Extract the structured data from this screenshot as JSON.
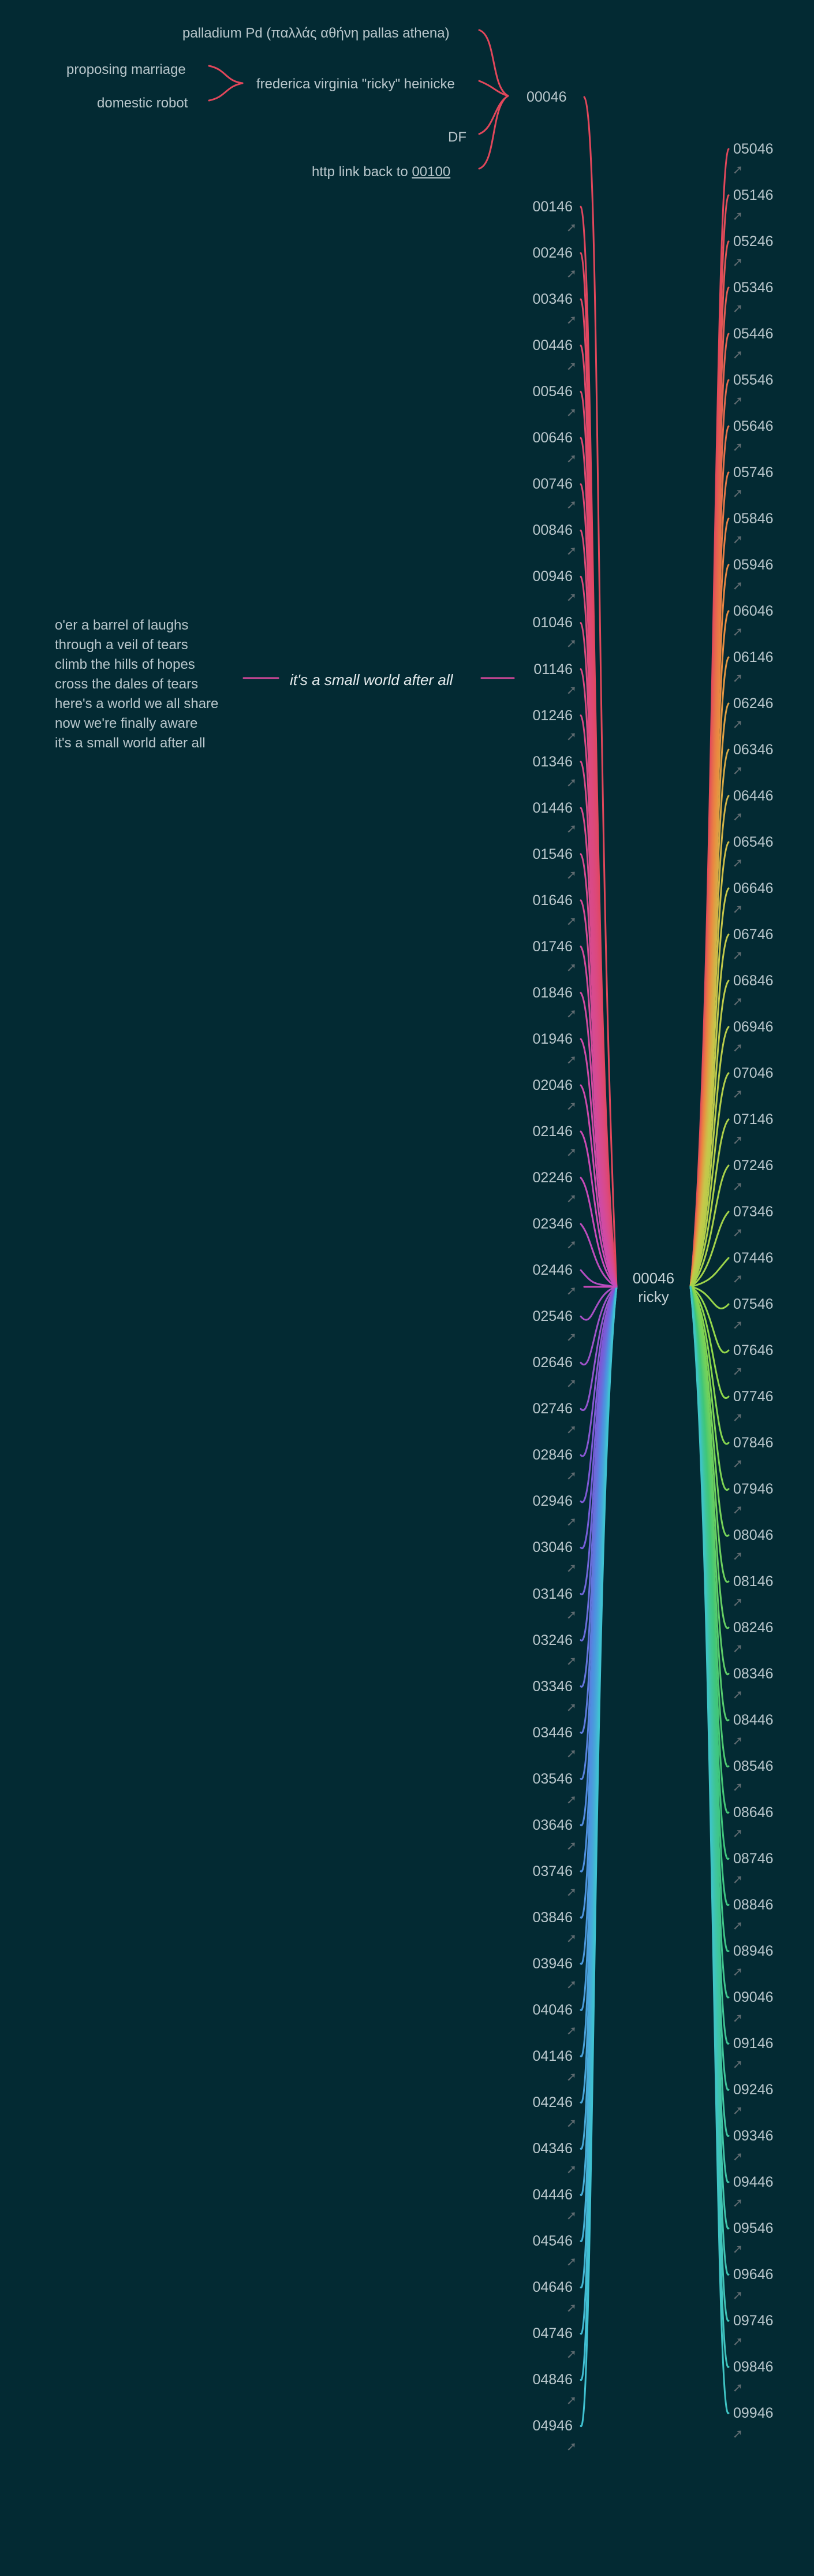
{
  "root": {
    "id": "00046",
    "name": "ricky"
  },
  "top_node": "00046",
  "top_left": {
    "palladium": "palladium Pd (παλλάς αθήνη pallas athena)",
    "frederica": "frederica virginia \"ricky\" heinicke",
    "proposing": "proposing marriage",
    "robot": "domestic robot",
    "df": "DF",
    "http_prefix": "http link back to ",
    "http_link": "00100"
  },
  "slogan": "it's a small world after all",
  "poem": [
    "o'er a barrel of laughs",
    "through a veil of tears",
    "climb the hills of hopes",
    "cross the dales of tears",
    "here's a world we all share",
    "now we're finally aware",
    "it's a small world after all"
  ],
  "left_column": [
    "00146",
    "00246",
    "00346",
    "00446",
    "00546",
    "00646",
    "00746",
    "00846",
    "00946",
    "01046",
    "01146",
    "01246",
    "01346",
    "01446",
    "01546",
    "01646",
    "01746",
    "01846",
    "01946",
    "02046",
    "02146",
    "02246",
    "02346",
    "02446",
    "02546",
    "02646",
    "02746",
    "02846",
    "02946",
    "03046",
    "03146",
    "03246",
    "03346",
    "03446",
    "03546",
    "03646",
    "03746",
    "03846",
    "03946",
    "04046",
    "04146",
    "04246",
    "04346",
    "04446",
    "04546",
    "04646",
    "04746",
    "04846",
    "04946"
  ],
  "right_column": [
    "05046",
    "05146",
    "05246",
    "05346",
    "05446",
    "05546",
    "05646",
    "05746",
    "05846",
    "05946",
    "06046",
    "06146",
    "06246",
    "06346",
    "06446",
    "06546",
    "06646",
    "06746",
    "06846",
    "06946",
    "07046",
    "07146",
    "07246",
    "07346",
    "07446",
    "07546",
    "07646",
    "07746",
    "07846",
    "07946",
    "08046",
    "08146",
    "08246",
    "08346",
    "08446",
    "08546",
    "08646",
    "08746",
    "08846",
    "08946",
    "09046",
    "09146",
    "09246",
    "09346",
    "09446",
    "09546",
    "09646",
    "09746",
    "09846",
    "09946"
  ],
  "icons": {
    "link": "link-arrow-icon"
  },
  "colors": {
    "background": "#032a33",
    "text": "#b9c7cc",
    "bracket": "#e2475b",
    "slogan_connector": "#d3479a",
    "arrow": "#5f6b70"
  }
}
